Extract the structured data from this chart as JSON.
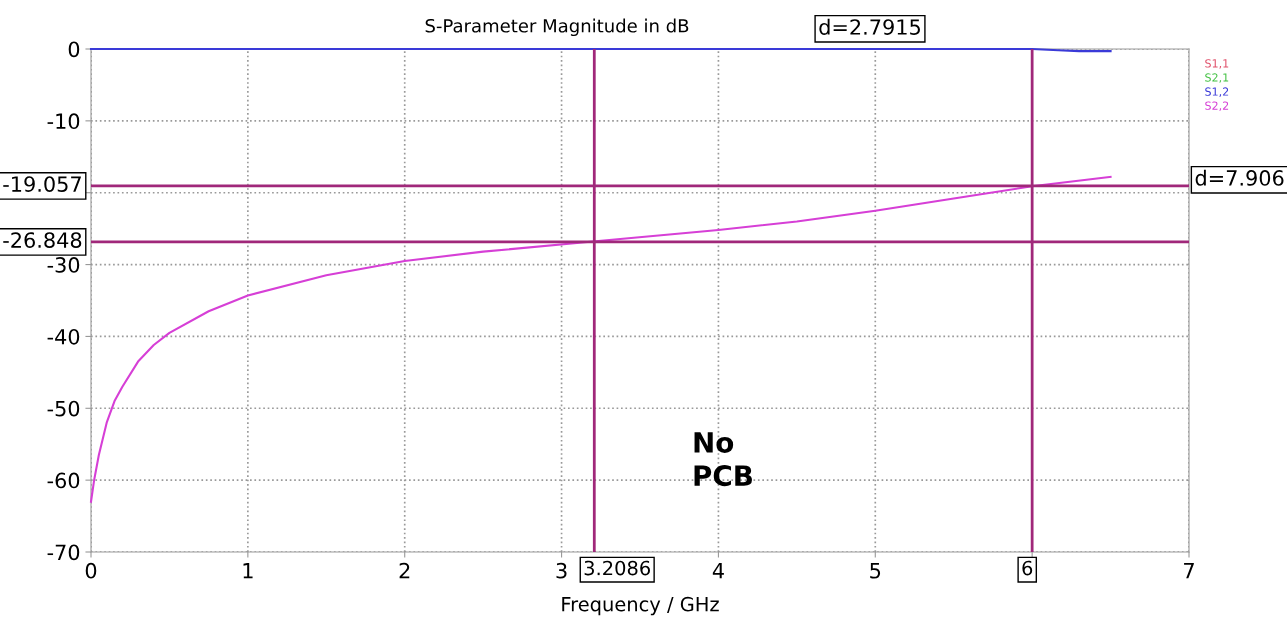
{
  "chart_data": {
    "type": "line",
    "title": "S-Parameter Magnitude in dB",
    "xlabel": "Frequency / GHz",
    "xlim": [
      0,
      7
    ],
    "xticks": [
      0,
      1,
      2,
      3,
      4,
      5,
      {
        "value": 6,
        "label": null
      },
      7
    ],
    "ylim": [
      -70,
      0
    ],
    "yticks": [
      -70,
      -60,
      -50,
      -40,
      -30,
      {
        "value": -20,
        "label": null
      },
      -10,
      0
    ],
    "grid": true,
    "legend": "right",
    "series": [
      {
        "name": "S1,1",
        "color": "#e0506a"
      },
      {
        "name": "S2,1",
        "color": "#40c040"
      },
      {
        "name": "S1,2",
        "color": "#3a3ad8",
        "x": [
          0,
          1,
          2,
          3,
          4,
          5,
          6,
          6.2,
          6.3,
          6.5
        ],
        "values": [
          0,
          0,
          0,
          0,
          0,
          0,
          0,
          -0.2,
          -0.3,
          -0.3
        ]
      },
      {
        "name": "S2,2",
        "color": "#d63fd6",
        "x": [
          0,
          0.02,
          0.05,
          0.1,
          0.15,
          0.2,
          0.3,
          0.4,
          0.5,
          0.75,
          1,
          1.5,
          2,
          2.5,
          3.2,
          4,
          4.5,
          5,
          5.5,
          6,
          6.5
        ],
        "values": [
          -63,
          -60,
          -56.5,
          -52,
          -49,
          -47,
          -43.5,
          -41.2,
          -39.5,
          -36.5,
          -34.3,
          -31.5,
          -29.5,
          -28.2,
          -26.8,
          -25.2,
          -24,
          -22.5,
          -20.8,
          -19.1,
          -17.8
        ]
      }
    ],
    "ref_lines": [
      {
        "axis": "x",
        "value": 3.2086,
        "label": "3.2086",
        "color": "#a0287a"
      },
      {
        "axis": "x",
        "value": 6,
        "label": "6",
        "color": "#a0287a"
      },
      {
        "axis": "y",
        "value": -19.057,
        "label": "-19.057",
        "color": "#a0287a"
      },
      {
        "axis": "y",
        "value": -26.848,
        "label": "-26.848",
        "color": "#a0287a"
      }
    ],
    "annotations": [
      "d=2.7915",
      "d=7.906",
      "No\nPCB"
    ]
  }
}
